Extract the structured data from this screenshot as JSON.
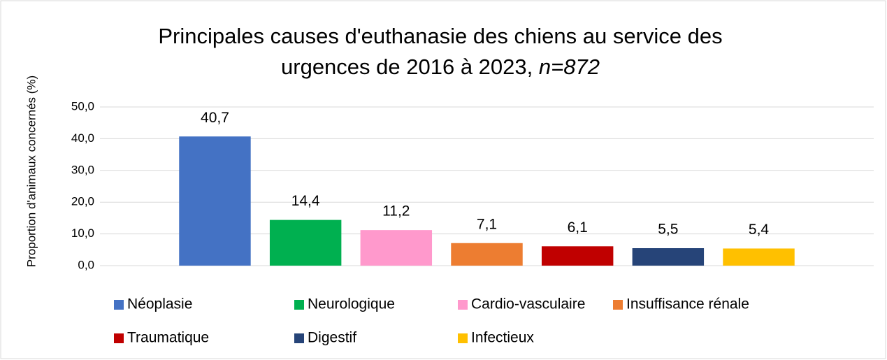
{
  "chart_data": {
    "type": "bar",
    "title": "Principales causes d'euthanasie des chiens au service des urgences de 2016 à 2023,",
    "title_emphasis": "n=872",
    "y_label": "Proportion d'animaux concernés (%)",
    "categories": [
      null
    ],
    "series": [
      {
        "name": "Néoplasie",
        "color": "#4472c4",
        "values": [
          40.7
        ],
        "value_labels": [
          "40,7"
        ]
      },
      {
        "name": "Neurologique",
        "color": "#00b050",
        "values": [
          14.4
        ],
        "value_labels": [
          "14,4"
        ]
      },
      {
        "name": "Cardio-vasculaire",
        "color": "#ff99cc",
        "values": [
          11.2
        ],
        "value_labels": [
          "11,2"
        ]
      },
      {
        "name": "Insuffisance rénale",
        "color": "#ed7d31",
        "values": [
          7.1
        ],
        "value_labels": [
          "7,1"
        ]
      },
      {
        "name": "Traumatique",
        "color": "#c00000",
        "values": [
          6.1
        ],
        "value_labels": [
          "6,1"
        ]
      },
      {
        "name": "Digestif",
        "color": "#264478",
        "values": [
          5.5
        ],
        "value_labels": [
          "5,5"
        ]
      },
      {
        "name": "Infectieux",
        "color": "#ffc000",
        "values": [
          5.4
        ],
        "value_labels": [
          "5,4"
        ]
      }
    ],
    "ylim": [
      0,
      50
    ],
    "yticks": [
      {
        "value": 0,
        "label": "0,0"
      },
      {
        "value": 10,
        "label": "10,0"
      },
      {
        "value": 20,
        "label": "20,0"
      },
      {
        "value": 30,
        "label": "30,0"
      },
      {
        "value": 40,
        "label": "40,0"
      },
      {
        "value": 50,
        "label": "50,0"
      }
    ],
    "grid": true,
    "legend": "bottom"
  }
}
